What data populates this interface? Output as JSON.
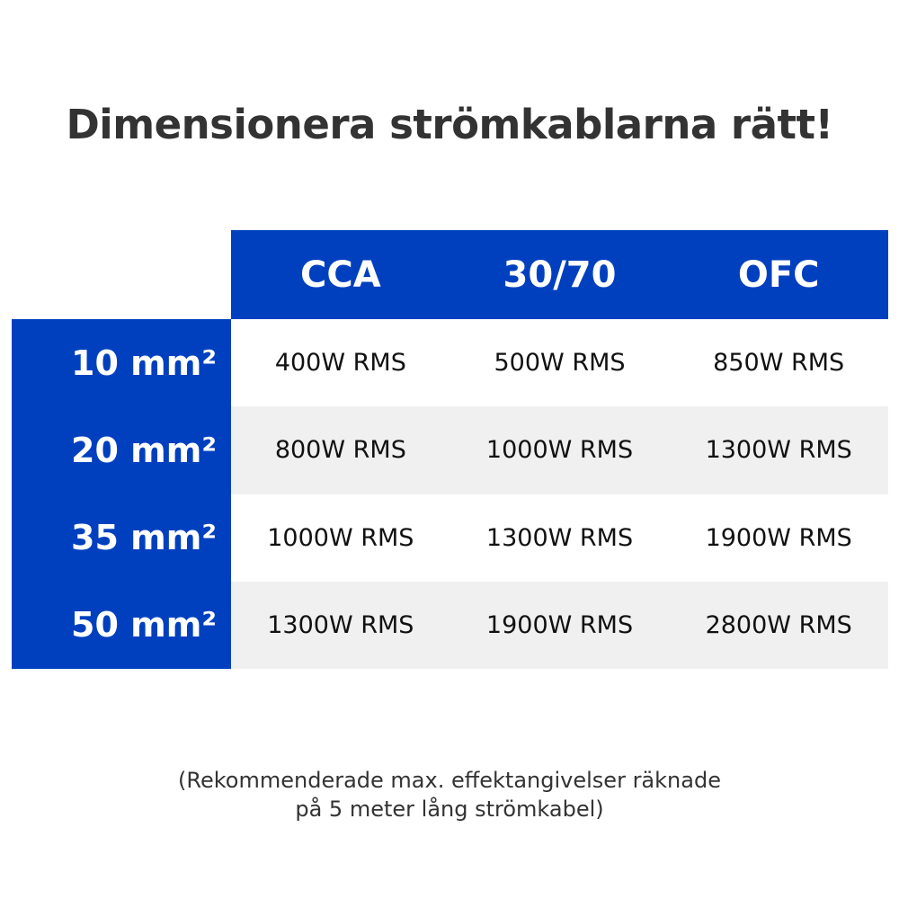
{
  "title": "Dimensionera strömkablarna rätt!",
  "columns": [
    "CCA",
    "30/70",
    "OFC"
  ],
  "rows": [
    {
      "label": "10 mm²",
      "values": [
        "400W RMS",
        "500W RMS",
        "850W RMS"
      ]
    },
    {
      "label": "20 mm²",
      "values": [
        "800W RMS",
        "1000W RMS",
        "1300W RMS"
      ]
    },
    {
      "label": "35 mm²",
      "values": [
        "1000W RMS",
        "1300W RMS",
        "1900W RMS"
      ]
    },
    {
      "label": "50 mm²",
      "values": [
        "1300W RMS",
        "1900W RMS",
        "2800W RMS"
      ]
    }
  ],
  "note": {
    "line1": "(Rekommenderade max. effektangivelser räknade",
    "line2": "på 5 meter lång strömkabel)"
  },
  "colors": {
    "accent": "#0040bf",
    "alt_row": "#f0f0f0"
  }
}
